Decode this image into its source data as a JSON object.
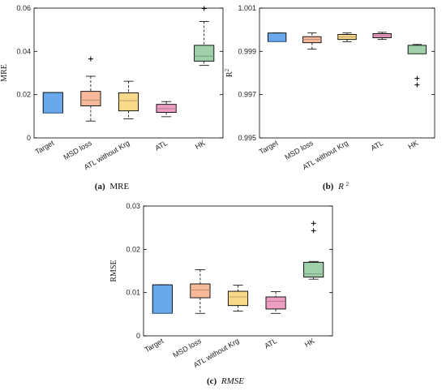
{
  "captions": [
    {
      "label": "(a)",
      "text": "MRE"
    },
    {
      "label": "(b)",
      "text": "R",
      "sup": "2"
    },
    {
      "label": "(c)",
      "text": "RMSE"
    }
  ],
  "chart_data": [
    {
      "type": "box",
      "ylabel": "MRE",
      "ylim": [
        0,
        0.06
      ],
      "yticks": [
        "0",
        "0.02",
        "0.04",
        "0.06"
      ],
      "categories": [
        "Target",
        "MSD loss",
        "ATL without Krg",
        "ATL",
        "HK"
      ],
      "colors": [
        "#6aa8ec",
        "#f7b99a",
        "#f9d98a",
        "#ee9ec2",
        "#9fd0a9"
      ],
      "boxes": [
        {
          "q1": 0.0115,
          "median": 0.0115,
          "q3": 0.021,
          "lo": 0.0115,
          "hi": 0.021,
          "outliers": []
        },
        {
          "q1": 0.0148,
          "median": 0.0175,
          "q3": 0.0215,
          "lo": 0.0078,
          "hi": 0.0285,
          "outliers": [
            0.0365
          ]
        },
        {
          "q1": 0.0125,
          "median": 0.0172,
          "q3": 0.0208,
          "lo": 0.0088,
          "hi": 0.0262,
          "outliers": []
        },
        {
          "q1": 0.0118,
          "median": 0.0135,
          "q3": 0.0155,
          "lo": 0.0098,
          "hi": 0.0168,
          "outliers": []
        },
        {
          "q1": 0.0355,
          "median": 0.0378,
          "q3": 0.0428,
          "lo": 0.0335,
          "hi": 0.0538,
          "outliers": [
            0.0598
          ]
        }
      ]
    },
    {
      "type": "box",
      "ylabel": "R",
      "ylabel_sup": "2",
      "ylim": [
        0.995,
        1.001
      ],
      "yticks": [
        "0.995",
        "0.997",
        "0.999",
        "1.001"
      ],
      "categories": [
        "Target",
        "MSD loss",
        "ATL without Krg",
        "ATL",
        "HK"
      ],
      "colors": [
        "#6aa8ec",
        "#f7b99a",
        "#f9d98a",
        "#ee9ec2",
        "#9fd0a9"
      ],
      "boxes": [
        {
          "q1": 0.99945,
          "median": 0.99945,
          "q3": 0.99985,
          "lo": 0.99945,
          "hi": 0.99985,
          "outliers": []
        },
        {
          "q1": 0.9994,
          "median": 0.99955,
          "q3": 0.99968,
          "lo": 0.9991,
          "hi": 0.99985,
          "outliers": []
        },
        {
          "q1": 0.99955,
          "median": 0.99967,
          "q3": 0.99978,
          "lo": 0.99945,
          "hi": 0.99985,
          "outliers": []
        },
        {
          "q1": 0.99963,
          "median": 0.99972,
          "q3": 0.99982,
          "lo": 0.99955,
          "hi": 0.99988,
          "outliers": []
        },
        {
          "q1": 0.99888,
          "median": 0.9989,
          "q3": 0.99928,
          "lo": 0.99888,
          "hi": 0.99932,
          "outliers": [
            0.99775,
            0.99745
          ]
        }
      ]
    },
    {
      "type": "box",
      "ylabel": "RMSE",
      "ylim": [
        0,
        0.03
      ],
      "yticks": [
        "0",
        "0.01",
        "0.02",
        "0.03"
      ],
      "categories": [
        "Target",
        "MSD loss",
        "ATL without Krg",
        "ATL",
        "HK"
      ],
      "colors": [
        "#6aa8ec",
        "#f7b99a",
        "#f9d98a",
        "#ee9ec2",
        "#9fd0a9"
      ],
      "boxes": [
        {
          "q1": 0.0052,
          "median": 0.0052,
          "q3": 0.0118,
          "lo": 0.0052,
          "hi": 0.0118,
          "outliers": []
        },
        {
          "q1": 0.0088,
          "median": 0.0106,
          "q3": 0.012,
          "lo": 0.0052,
          "hi": 0.0153,
          "outliers": []
        },
        {
          "q1": 0.007,
          "median": 0.009,
          "q3": 0.0103,
          "lo": 0.0057,
          "hi": 0.0117,
          "outliers": []
        },
        {
          "q1": 0.0062,
          "median": 0.008,
          "q3": 0.009,
          "lo": 0.0052,
          "hi": 0.0102,
          "outliers": []
        },
        {
          "q1": 0.0136,
          "median": 0.0143,
          "q3": 0.017,
          "lo": 0.0131,
          "hi": 0.0172,
          "outliers": [
            0.0243,
            0.026
          ]
        }
      ]
    }
  ]
}
